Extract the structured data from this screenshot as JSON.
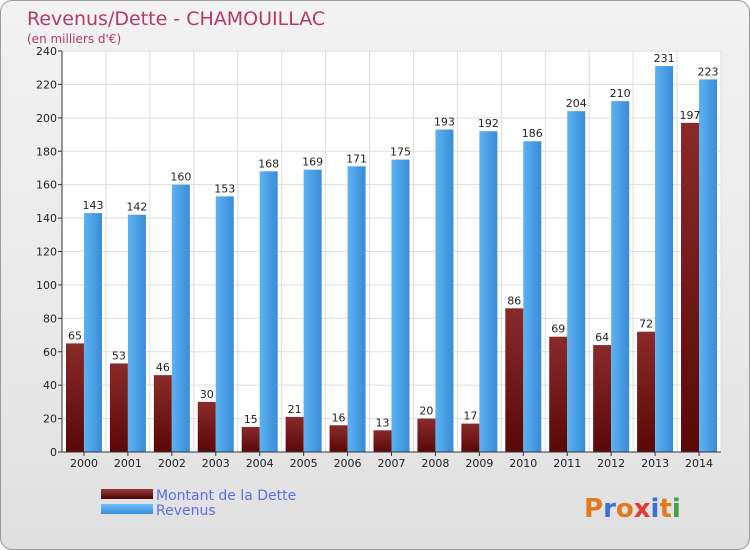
{
  "chart_data": {
    "type": "bar",
    "title": "Revenus/Dette - CHAMOUILLAC",
    "subtitle": "(en milliers d'€)",
    "categories": [
      "2000",
      "2001",
      "2002",
      "2003",
      "2004",
      "2005",
      "2006",
      "2007",
      "2008",
      "2009",
      "2010",
      "2011",
      "2012",
      "2013",
      "2014"
    ],
    "series": [
      {
        "name": "Montant de la Dette",
        "color": "#7a1c1c",
        "values": [
          65,
          53,
          46,
          30,
          15,
          21,
          16,
          13,
          20,
          17,
          86,
          69,
          64,
          72,
          197
        ]
      },
      {
        "name": "Revenus",
        "color": "#4aa0e6",
        "values": [
          143,
          142,
          160,
          153,
          168,
          169,
          171,
          175,
          193,
          192,
          186,
          204,
          210,
          231,
          223
        ]
      }
    ],
    "ylim": [
      0,
      240
    ],
    "yticks": [
      0,
      20,
      40,
      60,
      80,
      100,
      120,
      140,
      160,
      180,
      200,
      220,
      240
    ],
    "grid": true,
    "legend": "bottom-left"
  },
  "logo": {
    "text": "Proxiti",
    "colors": [
      "#e07a1f",
      "#3b6fd6",
      "#e07a1f",
      "#e53935",
      "#3b6fd6",
      "#e07a1f",
      "#43a047"
    ]
  }
}
